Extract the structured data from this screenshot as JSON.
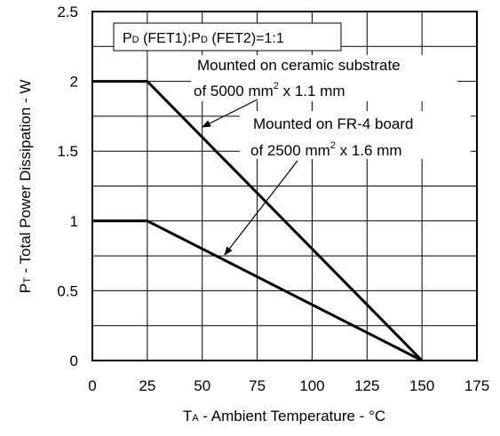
{
  "chart_data": {
    "type": "line",
    "xlabel_main": "T",
    "xlabel_sub": "A",
    "xlabel_rest": " - Ambient Temperature - °C",
    "ylabel_main": "P",
    "ylabel_sub": "T",
    "ylabel_rest": " - Total Power Dissipation - W",
    "xlim": [
      0,
      175
    ],
    "ylim": [
      0,
      2.5
    ],
    "x_ticks": [
      "0",
      "25",
      "50",
      "75",
      "100",
      "125",
      "150",
      "175"
    ],
    "y_ticks": [
      "0",
      "0.5",
      "1",
      "1.5",
      "2",
      "2.5"
    ],
    "grid": true,
    "series": [
      {
        "x": [
          0,
          25,
          150
        ],
        "y": [
          2,
          2,
          0
        ]
      },
      {
        "x": [
          0,
          25,
          150
        ],
        "y": [
          1,
          1,
          0
        ]
      }
    ],
    "condition_box": {
      "p1": "P",
      "p1_sub": "D",
      "p1_rest": " (FET1):P",
      "p2_sub": "D",
      "p2_rest": " (FET2)=1:1"
    },
    "annotations": [
      {
        "line1": "Mounted on ceramic substrate",
        "line2_a": "of 5000 mm",
        "line2_sup": "2",
        "line2_b": " x 1.1 mm"
      },
      {
        "line1": "Mounted on FR-4 board",
        "line2_a": "of 2500 mm",
        "line2_sup": "2",
        "line2_b": " x 1.6 mm"
      }
    ]
  }
}
